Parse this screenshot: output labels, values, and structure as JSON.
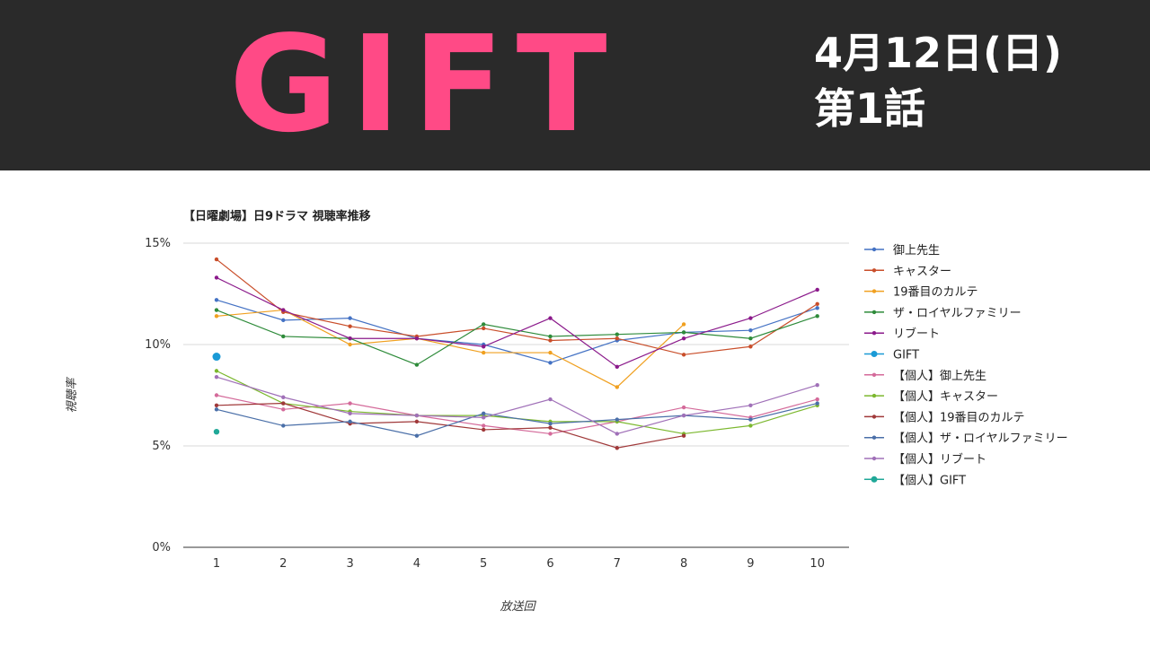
{
  "banner": {
    "title": "GIFT",
    "date": "4月12日(日)",
    "episode": "第1話",
    "title_color": "#ff4a86",
    "background": "#2a2a2a"
  },
  "chart_data": {
    "type": "line",
    "title": "【日曜劇場】日9ドラマ 視聴率推移",
    "xlabel": "放送回",
    "ylabel": "視聴率",
    "categories": [
      "1",
      "2",
      "3",
      "4",
      "5",
      "6",
      "7",
      "8",
      "9",
      "10"
    ],
    "y_ticks": [
      "0%",
      "5%",
      "10%",
      "15%"
    ],
    "ylim": [
      0,
      15
    ],
    "grid": "horizontal",
    "legend_position": "right",
    "series": [
      {
        "name": "御上先生",
        "color": "#4472c4",
        "values": [
          12.2,
          11.2,
          11.3,
          10.3,
          10.0,
          9.1,
          10.2,
          10.6,
          10.7,
          11.8
        ]
      },
      {
        "name": "キャスター",
        "color": "#c94e2a",
        "values": [
          14.2,
          11.6,
          10.9,
          10.4,
          10.8,
          10.2,
          10.3,
          9.5,
          9.9,
          12.0
        ]
      },
      {
        "name": "19番目のカルテ",
        "color": "#f0a020",
        "values": [
          11.4,
          11.7,
          10.0,
          10.3,
          9.6,
          9.6,
          7.9,
          11.0,
          null,
          null
        ]
      },
      {
        "name": "ザ・ロイヤルファミリー",
        "color": "#2e8b3a",
        "values": [
          11.7,
          10.4,
          10.3,
          9.0,
          11.0,
          10.4,
          10.5,
          10.6,
          10.3,
          11.4
        ]
      },
      {
        "name": "リブート",
        "color": "#8b1a8b",
        "values": [
          13.3,
          11.7,
          10.3,
          10.3,
          9.9,
          11.3,
          8.9,
          10.3,
          11.3,
          12.7
        ]
      },
      {
        "name": "GIFT",
        "color": "#1a9ad6",
        "values": [
          9.4,
          null,
          null,
          null,
          null,
          null,
          null,
          null,
          null,
          null
        ]
      },
      {
        "name": "【個人】御上先生",
        "color": "#d46a9a",
        "values": [
          7.5,
          6.8,
          7.1,
          6.5,
          6.0,
          5.6,
          6.2,
          6.9,
          6.4,
          7.3
        ]
      },
      {
        "name": "【個人】キャスター",
        "color": "#7cb82f",
        "values": [
          8.7,
          7.1,
          6.7,
          6.5,
          6.5,
          6.2,
          6.2,
          5.6,
          6.0,
          7.0
        ]
      },
      {
        "name": "【個人】19番目のカルテ",
        "color": "#a0393a",
        "values": [
          7.0,
          7.1,
          6.1,
          6.2,
          5.8,
          5.9,
          4.9,
          5.5,
          null,
          null
        ]
      },
      {
        "name": "【個人】ザ・ロイヤルファミリー",
        "color": "#4a6fa8",
        "values": [
          6.8,
          6.0,
          6.2,
          5.5,
          6.6,
          6.1,
          6.3,
          6.5,
          6.3,
          7.1
        ]
      },
      {
        "name": "【個人】リブート",
        "color": "#a070b8",
        "values": [
          8.4,
          7.4,
          6.6,
          6.5,
          6.4,
          7.3,
          5.6,
          6.5,
          7.0,
          8.0
        ]
      },
      {
        "name": "【個人】GIFT",
        "color": "#20a898",
        "values": [
          5.7,
          null,
          null,
          null,
          null,
          null,
          null,
          null,
          null,
          null
        ]
      }
    ]
  }
}
